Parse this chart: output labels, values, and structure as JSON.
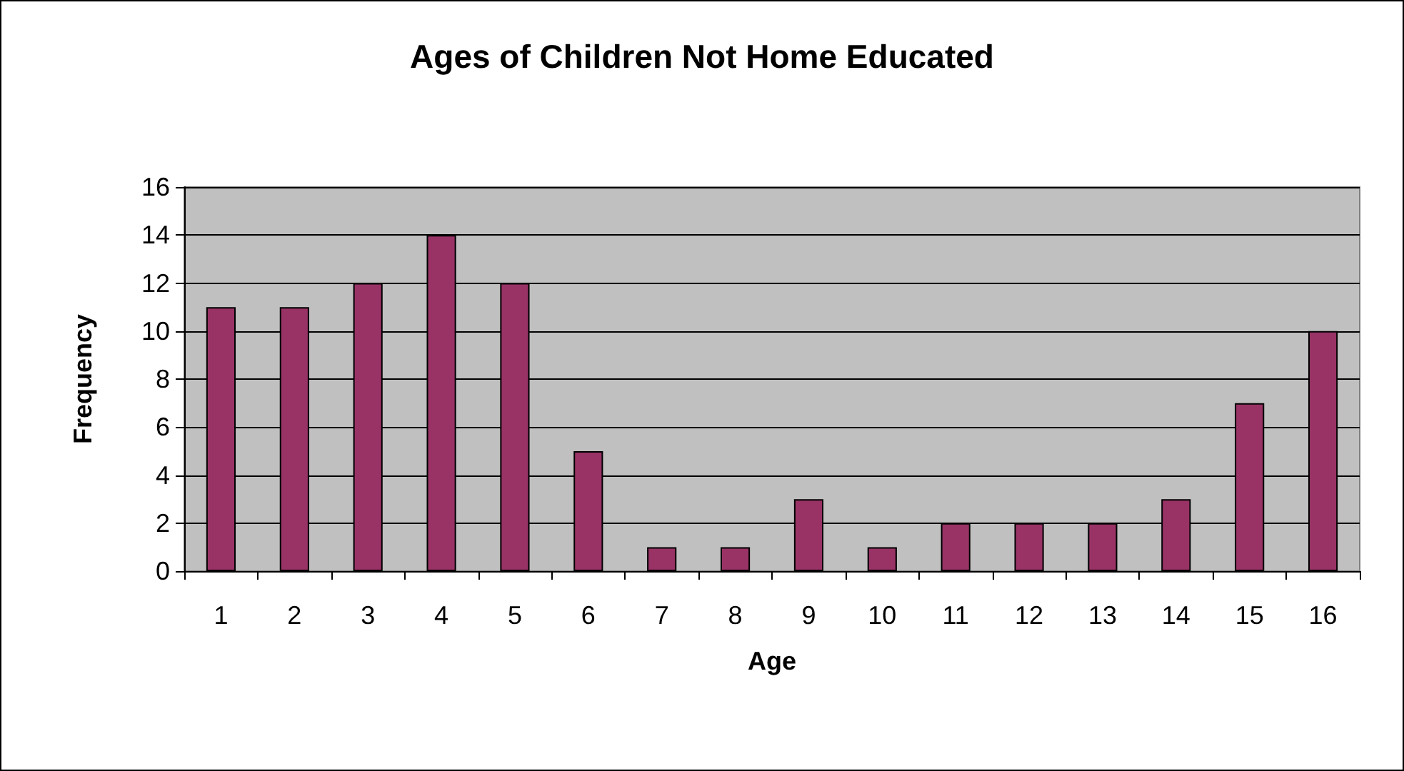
{
  "chart_data": {
    "type": "bar",
    "title": "Ages of Children Not Home Educated",
    "xlabel": "Age",
    "ylabel": "Frequency",
    "categories": [
      "1",
      "2",
      "3",
      "4",
      "5",
      "6",
      "7",
      "8",
      "9",
      "10",
      "11",
      "12",
      "13",
      "14",
      "15",
      "16"
    ],
    "values": [
      11,
      11,
      12,
      14,
      12,
      5,
      1,
      1,
      3,
      1,
      2,
      2,
      2,
      3,
      7,
      10
    ],
    "color": "#993366",
    "ylim": [
      0,
      16
    ],
    "yticks": [
      0,
      2,
      4,
      6,
      8,
      10,
      12,
      14,
      16
    ],
    "grid": "y"
  }
}
